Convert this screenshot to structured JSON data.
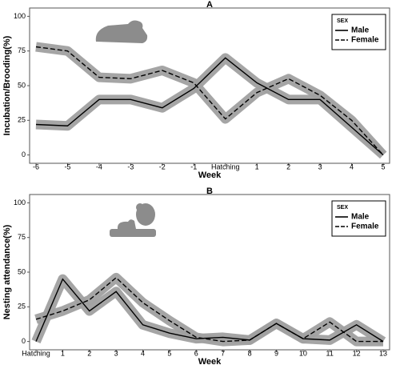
{
  "chart_data": [
    {
      "type": "line",
      "title": "A",
      "x_label": "Week",
      "y_label": "Incubation/Brooding(%)",
      "categories": [
        "-6",
        "-5",
        "-4",
        "-3",
        "-2",
        "-1",
        "Hatching",
        "1",
        "2",
        "3",
        "4",
        "5"
      ],
      "series": [
        {
          "name": "Male",
          "color": "#000000",
          "dash": "solid",
          "values": [
            22,
            21,
            40,
            40,
            34,
            48,
            70,
            52,
            40,
            40,
            20,
            0
          ]
        },
        {
          "name": "Female",
          "color": "#000000",
          "dash": "dashed",
          "values": [
            78,
            75,
            56,
            55,
            61,
            52,
            26,
            45,
            55,
            43,
            25,
            0
          ]
        }
      ],
      "band_color": "#a0a0a0",
      "ylim": [
        -6,
        106
      ],
      "yticks": [
        0,
        25,
        50,
        75,
        100
      ],
      "legend": "top-right",
      "legend_title": "SEX"
    },
    {
      "type": "line",
      "title": "B",
      "x_label": "Week",
      "y_label": "Nesting attendance(%)",
      "categories": [
        "Hatching",
        "1",
        "2",
        "3",
        "4",
        "5",
        "6",
        "7",
        "8",
        "9",
        "10",
        "11",
        "12",
        "13"
      ],
      "series": [
        {
          "name": "Male",
          "color": "#000000",
          "dash": "solid",
          "values": [
            0,
            45,
            22,
            36,
            12,
            6,
            2,
            3,
            1,
            13,
            2,
            1,
            12,
            0
          ]
        },
        {
          "name": "Female",
          "color": "#000000",
          "dash": "dashed",
          "values": [
            16,
            22,
            30,
            46,
            28,
            15,
            3,
            0,
            1,
            13,
            2,
            14,
            0,
            0
          ]
        }
      ],
      "band_color": "#a0a0a0",
      "ylim": [
        -6,
        106
      ],
      "yticks": [
        0,
        25,
        50,
        75,
        100
      ],
      "legend": "top-right",
      "legend_title": "SEX"
    }
  ]
}
